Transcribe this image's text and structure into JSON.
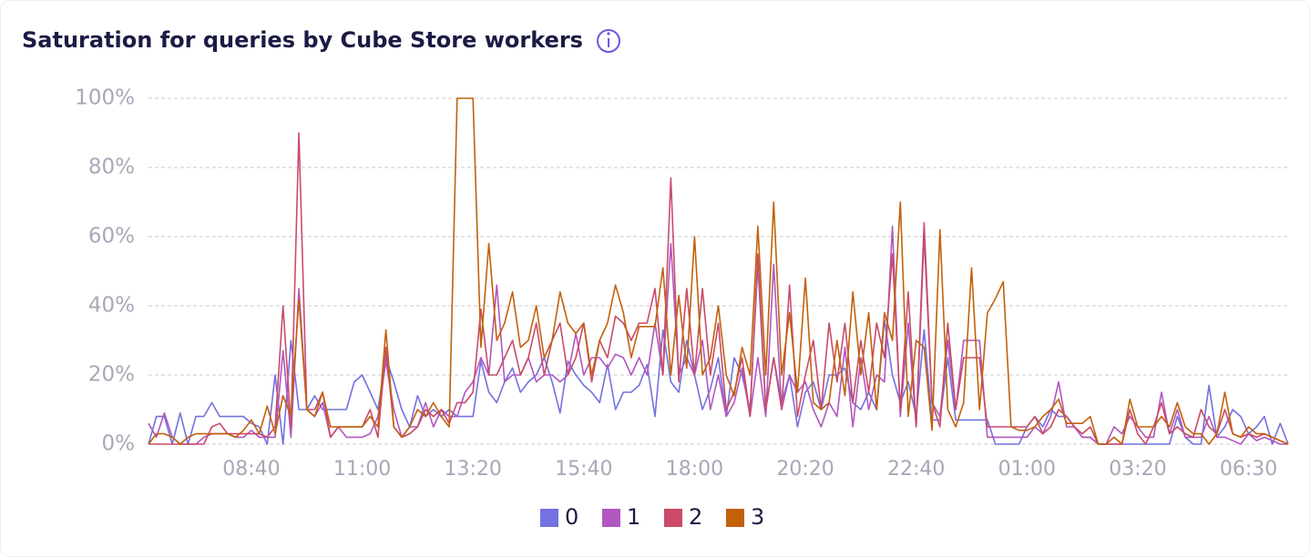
{
  "chart_data": {
    "type": "line",
    "title": "Saturation for queries by Cube Store workers",
    "categories": [
      null,
      null,
      null,
      null,
      null,
      null,
      null,
      null,
      null,
      null,
      null,
      null,
      null,
      "08:40",
      null,
      null,
      null,
      null,
      null,
      null,
      null,
      null,
      null,
      null,
      null,
      null,
      null,
      "11:00",
      null,
      null,
      null,
      null,
      null,
      null,
      null,
      null,
      null,
      null,
      null,
      null,
      null,
      "13:20",
      null,
      null,
      null,
      null,
      null,
      null,
      null,
      null,
      null,
      null,
      null,
      null,
      null,
      "15:40",
      null,
      null,
      null,
      null,
      null,
      null,
      null,
      null,
      null,
      null,
      null,
      null,
      null,
      "18:00",
      null,
      null,
      null,
      null,
      null,
      null,
      null,
      null,
      null,
      null,
      null,
      null,
      null,
      "20:20",
      null,
      null,
      null,
      null,
      null,
      null,
      null,
      null,
      null,
      null,
      null,
      null,
      null,
      "22:40",
      null,
      null,
      null,
      null,
      null,
      null,
      null,
      null,
      null,
      null,
      null,
      null,
      null,
      "01:00",
      null,
      null,
      null,
      null,
      null,
      null,
      null,
      null,
      null,
      null,
      null,
      null,
      null,
      "03:20",
      null,
      null,
      null,
      null,
      null,
      null,
      null,
      null,
      null,
      null,
      null,
      null,
      null,
      "06:30",
      null,
      null,
      null,
      null,
      null
    ],
    "series": [
      {
        "name": "0",
        "color": "#7272e0",
        "values": [
          0,
          8,
          8,
          0,
          9,
          0,
          8,
          8,
          12,
          8,
          8,
          8,
          8,
          6,
          5,
          0,
          20,
          0,
          30,
          10,
          10,
          14,
          10,
          10,
          10,
          10,
          18,
          20,
          15,
          10,
          25,
          18,
          10,
          5,
          14,
          8,
          10,
          8,
          10,
          8,
          8,
          8,
          24,
          15,
          12,
          18,
          22,
          15,
          18,
          20,
          25,
          18,
          9,
          24,
          20,
          17,
          15,
          12,
          23,
          10,
          15,
          15,
          17,
          23,
          8,
          33,
          18,
          15,
          30,
          20,
          10,
          16,
          25,
          8,
          25,
          20,
          10,
          52,
          10,
          25,
          12,
          20,
          5,
          15,
          18,
          10,
          20,
          20,
          22,
          12,
          10,
          15,
          10,
          36,
          20,
          12,
          18,
          8,
          33,
          7,
          7,
          25,
          7,
          7,
          7,
          7,
          7,
          0,
          0,
          0,
          0,
          5,
          8,
          5,
          10,
          8,
          8,
          5,
          2,
          2,
          0,
          0,
          0,
          0,
          0,
          0,
          0,
          0,
          0,
          0,
          8,
          2,
          0,
          0,
          17,
          2,
          5,
          10,
          8,
          3,
          5,
          8,
          0,
          6,
          0
        ]
      },
      {
        "name": "1",
        "color": "#b157c0",
        "values": [
          6,
          2,
          9,
          2,
          0,
          0,
          0,
          2,
          3,
          3,
          3,
          2,
          2,
          4,
          2,
          2,
          2,
          27,
          2,
          45,
          10,
          8,
          12,
          2,
          5,
          2,
          2,
          2,
          3,
          8,
          24,
          10,
          2,
          5,
          5,
          12,
          5,
          10,
          8,
          8,
          15,
          18,
          25,
          20,
          46,
          18,
          20,
          20,
          25,
          18,
          20,
          20,
          18,
          20,
          32,
          20,
          25,
          25,
          22,
          26,
          25,
          20,
          25,
          20,
          35,
          20,
          58,
          20,
          25,
          20,
          30,
          10,
          20,
          8,
          12,
          22,
          8,
          25,
          8,
          52,
          10,
          20,
          15,
          18,
          10,
          5,
          12,
          8,
          28,
          5,
          25,
          10,
          20,
          18,
          63,
          8,
          35,
          5,
          60,
          12,
          8,
          30,
          10,
          30,
          30,
          30,
          2,
          2,
          2,
          2,
          2,
          2,
          5,
          3,
          8,
          18,
          5,
          5,
          2,
          2,
          0,
          0,
          5,
          3,
          8,
          5,
          2,
          2,
          15,
          3,
          10,
          2,
          2,
          2,
          8,
          2,
          2,
          1,
          0,
          3,
          1,
          2,
          1,
          0,
          0
        ]
      },
      {
        "name": "2",
        "color": "#c94b68",
        "values": [
          0,
          0,
          0,
          0,
          0,
          0,
          0,
          0,
          5,
          6,
          3,
          3,
          3,
          3,
          3,
          2,
          5,
          40,
          5,
          90,
          10,
          10,
          15,
          2,
          5,
          5,
          5,
          5,
          10,
          2,
          28,
          5,
          2,
          3,
          5,
          10,
          8,
          10,
          6,
          12,
          12,
          15,
          39,
          20,
          20,
          25,
          30,
          20,
          25,
          35,
          20,
          30,
          35,
          20,
          25,
          35,
          18,
          30,
          25,
          37,
          35,
          30,
          35,
          35,
          45,
          20,
          77,
          18,
          45,
          20,
          45,
          20,
          35,
          10,
          15,
          25,
          8,
          55,
          10,
          25,
          10,
          46,
          8,
          20,
          30,
          10,
          35,
          18,
          35,
          12,
          30,
          15,
          35,
          25,
          55,
          10,
          44,
          5,
          64,
          12,
          5,
          35,
          10,
          25,
          25,
          25,
          5,
          5,
          5,
          5,
          5,
          5,
          8,
          3,
          5,
          10,
          8,
          5,
          3,
          5,
          0,
          0,
          0,
          0,
          10,
          3,
          0,
          5,
          12,
          3,
          5,
          3,
          2,
          10,
          5,
          3,
          10,
          3,
          2,
          3,
          2,
          3,
          2,
          1,
          0
        ]
      },
      {
        "name": "3",
        "color": "#c2610c",
        "values": [
          0,
          3,
          3,
          2,
          0,
          2,
          3,
          3,
          3,
          3,
          3,
          2,
          4,
          7,
          3,
          11,
          3,
          14,
          8,
          42,
          10,
          8,
          15,
          5,
          5,
          5,
          5,
          5,
          8,
          5,
          33,
          5,
          2,
          5,
          10,
          8,
          12,
          8,
          5,
          100,
          100,
          100,
          28,
          58,
          30,
          35,
          44,
          28,
          30,
          40,
          25,
          30,
          44,
          35,
          32,
          35,
          20,
          30,
          35,
          46,
          38,
          25,
          34,
          34,
          34,
          51,
          20,
          43,
          22,
          60,
          20,
          25,
          40,
          20,
          14,
          28,
          20,
          63,
          20,
          70,
          20,
          38,
          15,
          48,
          12,
          10,
          12,
          30,
          14,
          44,
          20,
          38,
          10,
          38,
          30,
          70,
          8,
          30,
          28,
          4,
          62,
          10,
          5,
          12,
          51,
          10,
          38,
          42,
          47,
          5,
          4,
          4,
          5,
          8,
          10,
          13,
          6,
          6,
          6,
          8,
          0,
          0,
          2,
          0,
          13,
          5,
          5,
          5,
          8,
          5,
          12,
          5,
          3,
          3,
          0,
          3,
          15,
          3,
          2,
          5,
          3,
          3,
          2,
          1,
          0
        ]
      }
    ],
    "ylim": [
      0,
      100
    ],
    "yticks": [
      {
        "value": 0,
        "label": "0%"
      },
      {
        "value": 20,
        "label": "20%"
      },
      {
        "value": 40,
        "label": "40%"
      },
      {
        "value": 60,
        "label": "60%"
      },
      {
        "value": 80,
        "label": "80%"
      },
      {
        "value": 100,
        "label": "100%"
      }
    ],
    "grid": true,
    "legend": "bottom"
  }
}
